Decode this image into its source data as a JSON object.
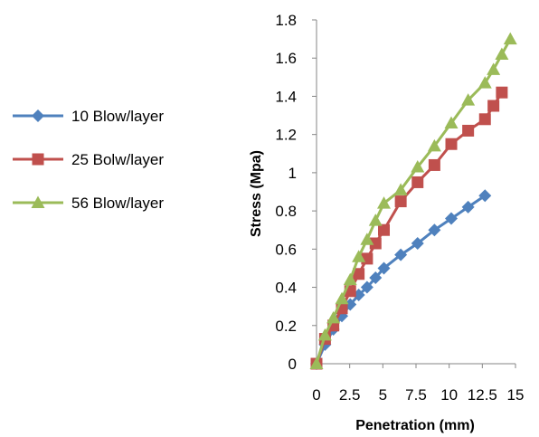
{
  "chart_data": {
    "type": "line",
    "title": "",
    "xlabel": "Penetration (mm)",
    "ylabel": "Stress (Mpa)",
    "xlim": [
      0,
      15
    ],
    "ylim": [
      0,
      1.8
    ],
    "x_ticks": [
      0,
      2.5,
      5,
      7.5,
      10,
      12.5,
      15
    ],
    "x_tick_labels": [
      "0",
      "2.5",
      "5",
      "7.5",
      "10",
      "12.5",
      "15"
    ],
    "y_ticks": [
      0,
      0.2,
      0.4,
      0.6,
      0.8,
      1,
      1.2,
      1.4,
      1.6,
      1.8
    ],
    "y_tick_labels": [
      "0",
      "0.2",
      "0.4",
      "0.6",
      "0.8",
      "1",
      "1.2",
      "1.4",
      "1.6",
      "1.8"
    ],
    "grid": false,
    "legend_position": "left",
    "series": [
      {
        "name": "10 Blow/layer",
        "color": "#4f81bd",
        "marker": "diamond",
        "points": [
          [
            0,
            0
          ],
          [
            0.64,
            0.1
          ],
          [
            1.27,
            0.18
          ],
          [
            1.91,
            0.25
          ],
          [
            2.54,
            0.31
          ],
          [
            3.18,
            0.36
          ],
          [
            3.81,
            0.4
          ],
          [
            4.45,
            0.45
          ],
          [
            5.08,
            0.5
          ],
          [
            6.35,
            0.57
          ],
          [
            7.62,
            0.63
          ],
          [
            8.89,
            0.7
          ],
          [
            10.16,
            0.76
          ],
          [
            11.43,
            0.82
          ],
          [
            12.7,
            0.88
          ]
        ]
      },
      {
        "name": "25 Bolw/layer",
        "color": "#c0504d",
        "marker": "square",
        "points": [
          [
            0,
            0
          ],
          [
            0.64,
            0.13
          ],
          [
            1.27,
            0.2
          ],
          [
            1.91,
            0.29
          ],
          [
            2.54,
            0.38
          ],
          [
            3.18,
            0.47
          ],
          [
            3.81,
            0.55
          ],
          [
            4.45,
            0.63
          ],
          [
            5.08,
            0.7
          ],
          [
            6.35,
            0.85
          ],
          [
            7.62,
            0.95
          ],
          [
            8.89,
            1.04
          ],
          [
            10.16,
            1.15
          ],
          [
            11.43,
            1.22
          ],
          [
            12.7,
            1.28
          ],
          [
            13.34,
            1.35
          ],
          [
            13.97,
            1.42
          ]
        ]
      },
      {
        "name": "56 Blow/layer",
        "color": "#9bbb59",
        "marker": "triangle",
        "points": [
          [
            0,
            0
          ],
          [
            0.64,
            0.15
          ],
          [
            1.27,
            0.24
          ],
          [
            1.91,
            0.34
          ],
          [
            2.54,
            0.44
          ],
          [
            3.18,
            0.56
          ],
          [
            3.81,
            0.65
          ],
          [
            4.45,
            0.75
          ],
          [
            5.08,
            0.84
          ],
          [
            6.35,
            0.91
          ],
          [
            7.62,
            1.03
          ],
          [
            8.89,
            1.14
          ],
          [
            10.16,
            1.26
          ],
          [
            11.43,
            1.38
          ],
          [
            12.7,
            1.47
          ],
          [
            13.34,
            1.54
          ],
          [
            13.97,
            1.62
          ],
          [
            14.61,
            1.7
          ]
        ]
      }
    ]
  }
}
